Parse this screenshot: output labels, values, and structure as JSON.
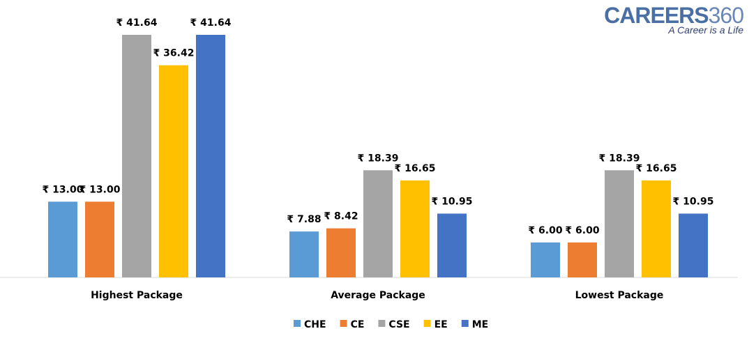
{
  "chart_data": {
    "type": "bar",
    "title": "",
    "xlabel": "",
    "ylabel": "",
    "ylim": [
      0,
      45
    ],
    "grid": false,
    "legend_position": "bottom",
    "value_prefix": "₹ ",
    "categories": [
      "Highest Package",
      "Average Package",
      "Lowest Package"
    ],
    "series": [
      {
        "name": "CHE",
        "color": "#5b9bd5",
        "values": [
          13.0,
          7.88,
          6.0
        ]
      },
      {
        "name": "CE",
        "color": "#ed7d31",
        "values": [
          13.0,
          8.42,
          6.0
        ]
      },
      {
        "name": "CSE",
        "color": "#a5a5a5",
        "values": [
          41.64,
          18.39,
          18.39
        ]
      },
      {
        "name": "EE",
        "color": "#ffc000",
        "values": [
          36.42,
          16.65,
          16.65
        ]
      },
      {
        "name": "ME",
        "color": "#4472c4",
        "values": [
          41.64,
          10.95,
          10.95
        ]
      }
    ]
  },
  "logo": {
    "brand": "CAREERS",
    "number": "360",
    "tagline": "A Career is a Life"
  }
}
